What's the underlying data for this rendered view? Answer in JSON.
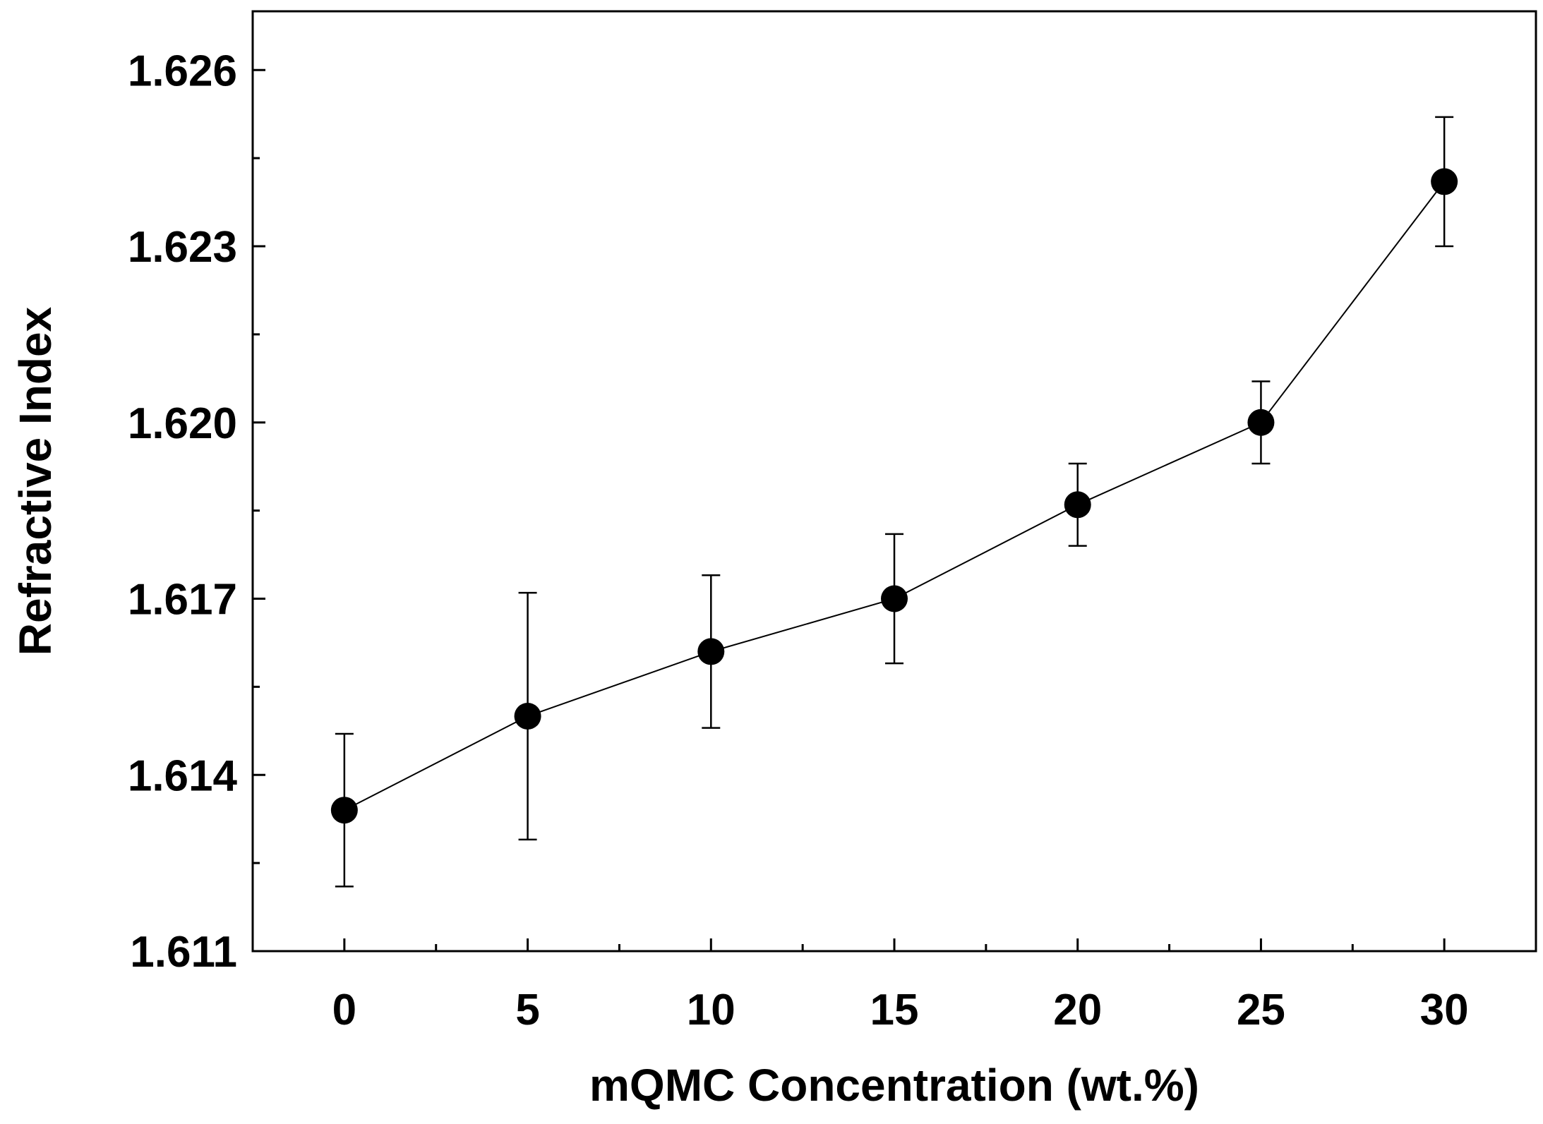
{
  "chart_data": {
    "type": "line",
    "title": "",
    "xlabel": "mQMC Concentration (wt.%)",
    "ylabel": "Refractive Index",
    "xlim": [
      -2.5,
      32.5
    ],
    "ylim": [
      1.611,
      1.627
    ],
    "xticks": [
      0,
      5,
      10,
      15,
      20,
      25,
      30
    ],
    "xtick_labels": [
      "0",
      "5",
      "10",
      "15",
      "20",
      "25",
      "30"
    ],
    "yticks": [
      1.611,
      1.614,
      1.617,
      1.62,
      1.623,
      1.626
    ],
    "ytick_labels": [
      "1.611",
      "1.614",
      "1.617",
      "1.620",
      "1.623",
      "1.626"
    ],
    "grid": false,
    "series": [
      {
        "name": "Refractive Index",
        "marker": "circle",
        "color": "#000000",
        "x": [
          0,
          5,
          10,
          15,
          20,
          25,
          30
        ],
        "y": [
          1.6134,
          1.615,
          1.6161,
          1.617,
          1.6186,
          1.62,
          1.6241
        ],
        "error": [
          [
            1.6121,
            1.6147
          ],
          [
            1.6129,
            1.6171
          ],
          [
            1.6148,
            1.6174
          ],
          [
            1.6159,
            1.6181
          ],
          [
            1.6179,
            1.6193
          ],
          [
            1.6193,
            1.6207
          ],
          [
            1.623,
            1.6252
          ]
        ]
      }
    ]
  }
}
